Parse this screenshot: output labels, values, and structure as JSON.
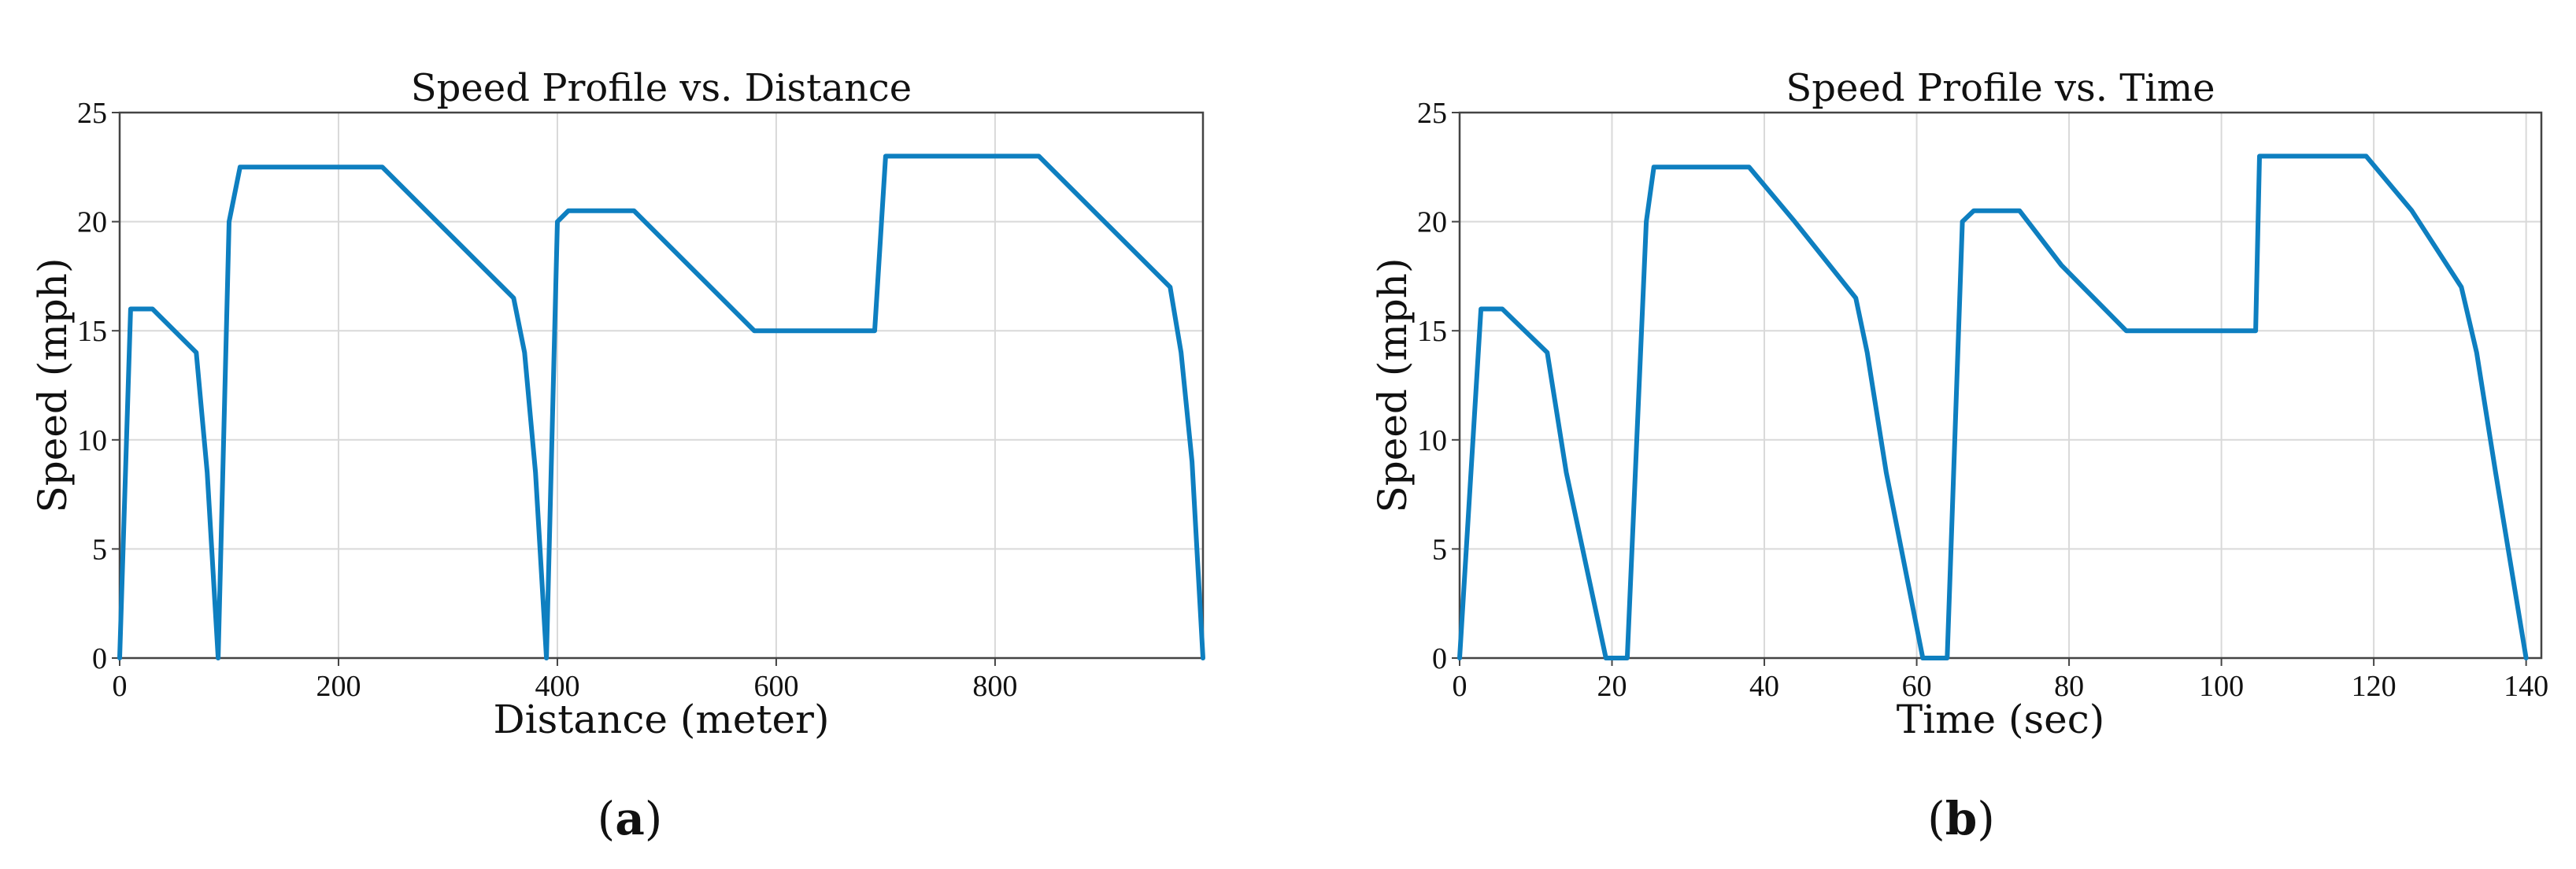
{
  "chart_data": [
    {
      "type": "line",
      "title": "Speed Profile vs. Distance",
      "xlabel": "Distance (meter)",
      "ylabel": "Speed (mph)",
      "panel_label": "a",
      "xlim": [
        0,
        990
      ],
      "ylim": [
        0,
        25
      ],
      "xticks": [
        0,
        200,
        400,
        600,
        800
      ],
      "yticks": [
        0,
        5,
        10,
        15,
        20,
        25
      ],
      "grid": true,
      "color": "#0e7fc0",
      "x": [
        0,
        10,
        30,
        70,
        80,
        90,
        100,
        110,
        240,
        360,
        370,
        380,
        390,
        400,
        410,
        470,
        580,
        690,
        700,
        840,
        960,
        970,
        980,
        990
      ],
      "y": [
        0,
        16,
        16,
        14,
        8.5,
        0,
        20,
        22.5,
        22.5,
        16.5,
        14,
        8.5,
        0,
        20,
        20.5,
        20.5,
        15,
        15,
        23,
        23,
        17,
        14,
        9,
        0
      ]
    },
    {
      "type": "line",
      "title": "Speed Profile vs. Time",
      "xlabel": "Time (sec)",
      "ylabel": "Speed (mph)",
      "panel_label": "b",
      "xlim": [
        0,
        142
      ],
      "ylim": [
        0,
        25
      ],
      "xticks": [
        0,
        20,
        40,
        60,
        80,
        100,
        120,
        140
      ],
      "yticks": [
        0,
        5,
        10,
        15,
        20,
        25
      ],
      "grid": true,
      "color": "#0e7fc0",
      "x": [
        0,
        2.8,
        5.6,
        11.5,
        14,
        19.2,
        22,
        24.5,
        25.5,
        38,
        44,
        52,
        53.5,
        56,
        60.8,
        64,
        66,
        67.5,
        73.5,
        79,
        87.5,
        104.5,
        105,
        119,
        125,
        131.5,
        133.5,
        136,
        140
      ],
      "y": [
        0,
        16,
        16,
        14,
        8.5,
        0,
        0,
        20,
        22.5,
        22.5,
        20,
        16.5,
        14,
        8.5,
        0,
        0,
        20,
        20.5,
        20.5,
        18,
        15,
        15,
        23,
        23,
        20.5,
        17,
        14,
        8.5,
        0
      ]
    }
  ]
}
